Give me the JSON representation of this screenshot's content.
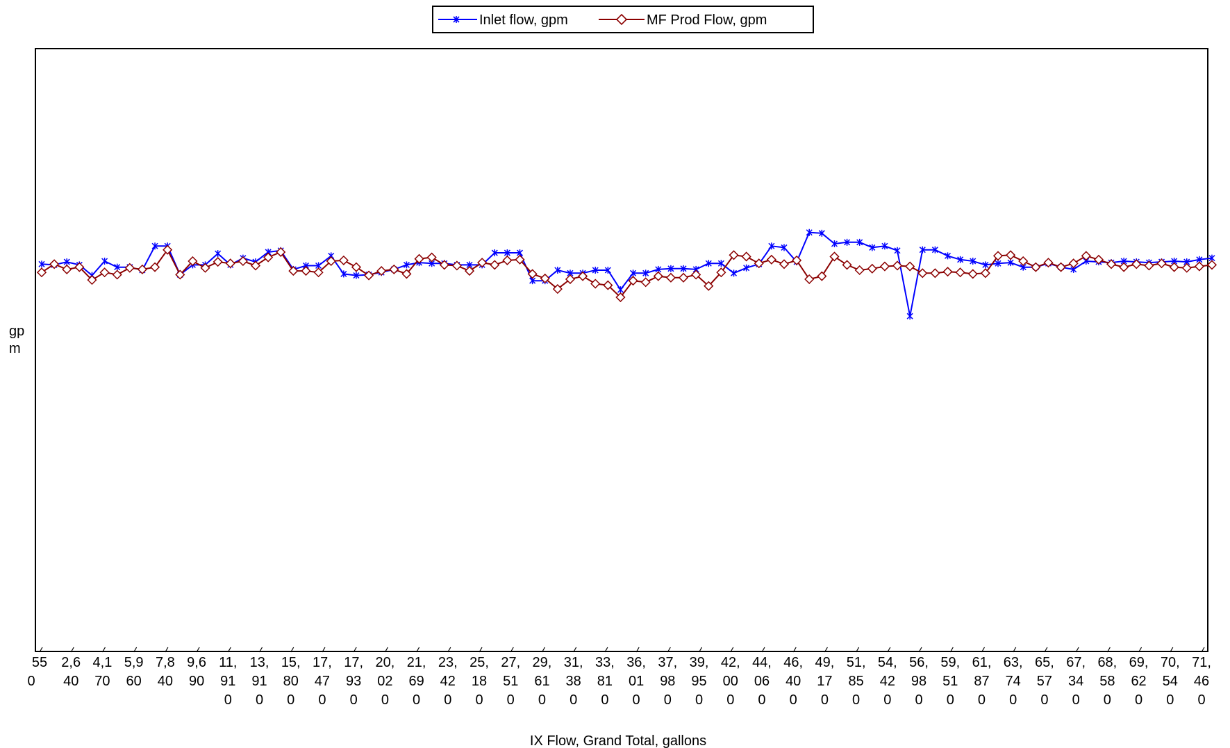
{
  "chart_data": {
    "type": "line",
    "title": "",
    "xlabel": "IX Flow, Grand Total, gallons",
    "ylabel": "gpm",
    "ylabel_lines": [
      "gp",
      "m"
    ],
    "ylim": [
      0,
      80
    ],
    "grid": false,
    "legend_position": "top-center",
    "x_tick_labels": [
      "550",
      "2,640",
      "4,170",
      "5,960",
      "7,840",
      "9,690",
      "11,910",
      "13,910",
      "15,800",
      "17,470",
      "17,930",
      "20,020",
      "21,690",
      "23,420",
      "25,180",
      "27,510",
      "29,610",
      "31,380",
      "33,810",
      "36,010",
      "37,980",
      "39,950",
      "42,000",
      "44,060",
      "46,400",
      "49,170",
      "51,850",
      "54,420",
      "56,980",
      "59,510",
      "61,870",
      "63,740",
      "65,570",
      "67,340",
      "68,580",
      "69,620",
      "70,540",
      "71,460"
    ],
    "x_tick_display": [
      [
        "55",
        "0",
        ""
      ],
      [
        "2,6",
        "40",
        ""
      ],
      [
        "4,1",
        "70",
        ""
      ],
      [
        "5,9",
        "60",
        ""
      ],
      [
        "7,8",
        "40",
        ""
      ],
      [
        "9,6",
        "90",
        ""
      ],
      [
        "11,",
        "91",
        "0"
      ],
      [
        "13,",
        "91",
        "0"
      ],
      [
        "15,",
        "80",
        "0"
      ],
      [
        "17,",
        "47",
        "0"
      ],
      [
        "17,",
        "93",
        "0"
      ],
      [
        "20,",
        "02",
        "0"
      ],
      [
        "21,",
        "69",
        "0"
      ],
      [
        "23,",
        "42",
        "0"
      ],
      [
        "25,",
        "18",
        "0"
      ],
      [
        "27,",
        "51",
        "0"
      ],
      [
        "29,",
        "61",
        "0"
      ],
      [
        "31,",
        "38",
        "0"
      ],
      [
        "33,",
        "81",
        "0"
      ],
      [
        "36,",
        "01",
        "0"
      ],
      [
        "37,",
        "98",
        "0"
      ],
      [
        "39,",
        "95",
        "0"
      ],
      [
        "42,",
        "00",
        "0"
      ],
      [
        "44,",
        "06",
        "0"
      ],
      [
        "46,",
        "40",
        "0"
      ],
      [
        "49,",
        "17",
        "0"
      ],
      [
        "51,",
        "85",
        "0"
      ],
      [
        "54,",
        "42",
        "0"
      ],
      [
        "56,",
        "98",
        "0"
      ],
      [
        "59,",
        "51",
        "0"
      ],
      [
        "61,",
        "87",
        "0"
      ],
      [
        "63,",
        "74",
        "0"
      ],
      [
        "65,",
        "57",
        "0"
      ],
      [
        "67,",
        "34",
        "0"
      ],
      [
        "68,",
        "58",
        "0"
      ],
      [
        "69,",
        "62",
        "0"
      ],
      [
        "70,",
        "54",
        "0"
      ],
      [
        "71,",
        "46",
        "0"
      ]
    ],
    "series": [
      {
        "name": "Inlet flow, gpm",
        "color": "#0000ff",
        "marker": "asterisk",
        "values": [
          51.4,
          51.3,
          51.7,
          51.3,
          49.9,
          51.8,
          51.0,
          51.0,
          50.6,
          53.8,
          53.8,
          50.0,
          51.3,
          51.3,
          52.8,
          51.3,
          52.2,
          51.7,
          53.0,
          53.2,
          50.7,
          51.2,
          51.2,
          52.5,
          50.1,
          49.9,
          50.0,
          50.3,
          50.7,
          51.3,
          51.6,
          51.5,
          51.5,
          51.3,
          51.3,
          51.3,
          52.9,
          52.9,
          52.9,
          49.2,
          49.2,
          50.6,
          50.2,
          50.2,
          50.6,
          50.6,
          48.0,
          50.2,
          50.2,
          50.7,
          50.8,
          50.8,
          50.7,
          51.5,
          51.5,
          50.2,
          50.9,
          51.4,
          53.8,
          53.6,
          51.7,
          55.6,
          55.5,
          54.1,
          54.3,
          54.3,
          53.6,
          53.8,
          53.2,
          44.5,
          53.3,
          53.3,
          52.5,
          52.0,
          51.8,
          51.3,
          51.5,
          51.6,
          51.0,
          51.0,
          51.5,
          51.0,
          50.7,
          51.8,
          51.7,
          51.6,
          51.8,
          51.7,
          51.6,
          51.7,
          51.8,
          51.7,
          52.0,
          52.2
        ]
      },
      {
        "name": "MF Prod Flow, gpm",
        "color": "#8b0000",
        "marker": "diamond-open",
        "values": [
          50.3,
          51.4,
          50.7,
          51.0,
          49.3,
          50.3,
          50.0,
          50.9,
          50.7,
          51.0,
          53.3,
          50.0,
          51.8,
          50.9,
          51.7,
          51.5,
          51.8,
          51.2,
          52.3,
          53.0,
          50.5,
          50.5,
          50.3,
          51.8,
          51.9,
          51.0,
          49.9,
          50.5,
          50.7,
          50.1,
          52.1,
          52.3,
          51.3,
          51.2,
          50.5,
          51.6,
          51.3,
          51.9,
          52.0,
          50.1,
          49.5,
          48.1,
          49.4,
          49.8,
          48.8,
          48.6,
          47.0,
          49.2,
          49.0,
          49.8,
          49.6,
          49.6,
          50.0,
          48.5,
          50.3,
          52.6,
          52.4,
          51.5,
          52.0,
          51.4,
          51.9,
          49.4,
          49.8,
          52.4,
          51.3,
          50.6,
          50.8,
          51.1,
          51.2,
          51.1,
          50.2,
          50.2,
          50.4,
          50.3,
          50.1,
          50.2,
          52.5,
          52.6,
          51.8,
          51.0,
          51.6,
          51.0,
          51.5,
          52.5,
          52.0,
          51.4,
          51.0,
          51.4,
          51.2,
          51.5,
          51.0,
          50.9,
          51.1,
          51.3
        ]
      }
    ]
  }
}
